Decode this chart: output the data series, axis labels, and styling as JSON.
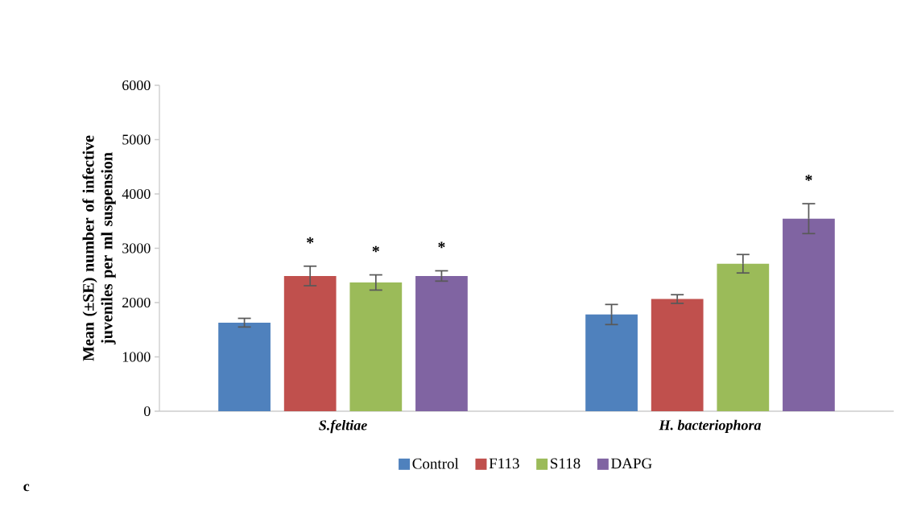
{
  "chart_data": {
    "type": "bar",
    "ylabel": "Mean (±SE) number of infective juveniles per ml suspension",
    "categories": [
      "S.feltiae",
      "H. bacteriophora"
    ],
    "series": [
      {
        "name": "Control",
        "color": "#4f81bd",
        "values": [
          1630,
          1780
        ],
        "errors": [
          80,
          185
        ]
      },
      {
        "name": "F113",
        "color": "#c0504d",
        "values": [
          2490,
          2065
        ],
        "errors": [
          180,
          80
        ],
        "value_labels": [
          "*",
          null
        ]
      },
      {
        "name": "S118",
        "color": "#9bbb59",
        "values": [
          2370,
          2715
        ],
        "errors": [
          140,
          170
        ],
        "value_labels": [
          "*",
          null
        ]
      },
      {
        "name": "DAPG",
        "color": "#8064a2",
        "values": [
          2490,
          3545
        ],
        "errors": [
          95,
          275
        ],
        "value_labels": [
          "*",
          "*"
        ]
      }
    ],
    "ylim": [
      0,
      6000
    ],
    "yticks": [
      0,
      1000,
      2000,
      3000,
      4000,
      5000,
      6000
    ],
    "legend": "bottom",
    "grid": false,
    "annotations": [
      "c"
    ]
  }
}
